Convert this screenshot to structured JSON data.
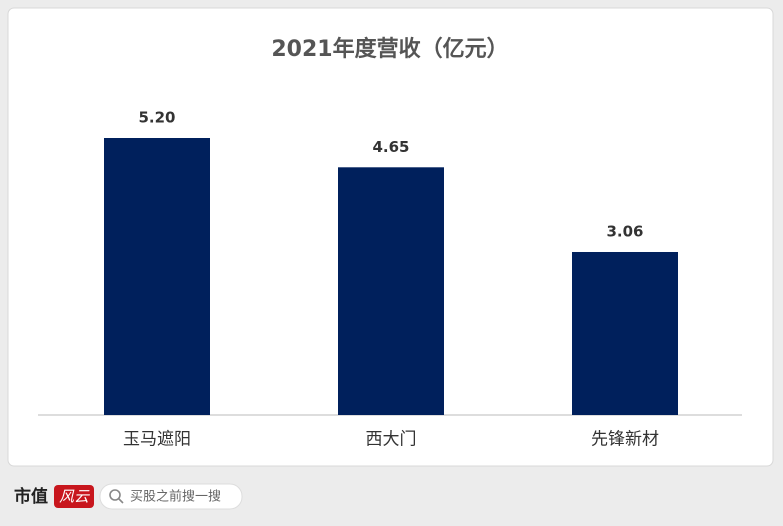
{
  "chart_data": {
    "type": "bar",
    "title": "2021年度营收（亿元）",
    "categories": [
      "玉马遮阳",
      "西大门",
      "先锋新材"
    ],
    "values": [
      5.2,
      4.65,
      3.06
    ],
    "value_labels": [
      "5.20",
      "4.65",
      "3.06"
    ],
    "color": "#00205c"
  },
  "footer": {
    "brand": "市值",
    "logo": "风云",
    "search": "买股之前搜一搜"
  }
}
